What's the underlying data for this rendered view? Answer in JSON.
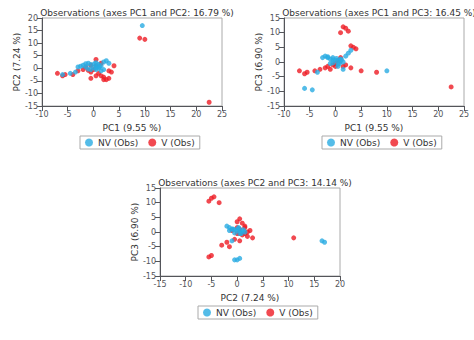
{
  "chart_data": [
    {
      "type": "scatter",
      "title": "Observations (axes PC1 and PC2: 16.79 %)",
      "xlabel": "PC1 (9.55 %)",
      "ylabel": "PC2 (7.24 %)",
      "xlim": [
        -10,
        25
      ],
      "ylim": [
        -15,
        20
      ],
      "xticks": [
        -10,
        -5,
        0,
        5,
        10,
        15,
        20,
        25
      ],
      "yticks": [
        -15,
        -10,
        -5,
        0,
        5,
        10,
        15,
        20
      ],
      "grid": false,
      "legend": "bottom",
      "series": [
        {
          "name": "NV (Obs)",
          "color": "#29ABE2",
          "values": [
            [
              -1.5,
              1.8
            ],
            [
              -2.0,
              1.2
            ],
            [
              -1.0,
              2.0
            ],
            [
              -0.5,
              1.5
            ],
            [
              0.2,
              1.8
            ],
            [
              0.5,
              2.2
            ],
            [
              1.0,
              1.5
            ],
            [
              0.8,
              0.8
            ],
            [
              1.5,
              1.0
            ],
            [
              2.0,
              2.5
            ],
            [
              2.5,
              3.0
            ],
            [
              3.0,
              2.0
            ],
            [
              -0.5,
              -0.5
            ],
            [
              0.0,
              0.3
            ],
            [
              1.0,
              0.0
            ],
            [
              9.5,
              17.0
            ],
            [
              -4.5,
              -2.0
            ],
            [
              -6.0,
              -2.5
            ],
            [
              -3.5,
              -1.5
            ],
            [
              0.5,
              -0.5
            ],
            [
              1.5,
              -1.0
            ],
            [
              2.0,
              -0.5
            ],
            [
              -1.5,
              0.5
            ],
            [
              -2.5,
              0.8
            ],
            [
              -3.0,
              0.5
            ],
            [
              -1.0,
              -0.3
            ],
            [
              0.5,
              0.2
            ],
            [
              1.2,
              0.5
            ]
          ]
        },
        {
          "name": "V (Obs)",
          "color": "#ED1C24",
          "values": [
            [
              -5.5,
              -2.5
            ],
            [
              -7.0,
              -2.0
            ],
            [
              -6.0,
              -3.0
            ],
            [
              -4.0,
              -2.5
            ],
            [
              -3.0,
              -1.0
            ],
            [
              -2.0,
              -0.5
            ],
            [
              -1.0,
              -0.8
            ],
            [
              0.0,
              -0.5
            ],
            [
              1.0,
              -2.0
            ],
            [
              2.0,
              -3.5
            ],
            [
              3.0,
              -4.0
            ],
            [
              2.5,
              -4.5
            ],
            [
              0.5,
              -3.0
            ],
            [
              -0.5,
              -1.5
            ],
            [
              9.0,
              12.0
            ],
            [
              10.0,
              11.5
            ],
            [
              22.5,
              -13.5
            ],
            [
              4.0,
              1.0
            ],
            [
              3.5,
              -1.5
            ],
            [
              1.5,
              2.0
            ],
            [
              0.5,
              3.5
            ],
            [
              -1.5,
              0.5
            ],
            [
              -0.5,
              -4.0
            ],
            [
              2.0,
              -4.5
            ],
            [
              1.5,
              -3.0
            ],
            [
              0.5,
              1.0
            ],
            [
              -0.5,
              1.2
            ],
            [
              3.0,
              -1.0
            ]
          ]
        }
      ]
    },
    {
      "type": "scatter",
      "title": "Observations (axes PC1 and PC3: 16.45 %)",
      "xlabel": "PC1 (9.55 %)",
      "ylabel": "PC3 (6.90 %)",
      "xlim": [
        -10,
        25
      ],
      "ylim": [
        -15,
        15
      ],
      "xticks": [
        -10,
        -5,
        0,
        5,
        10,
        15,
        20,
        25
      ],
      "yticks": [
        -15,
        -10,
        -5,
        0,
        5,
        10,
        15
      ],
      "grid": false,
      "legend": "bottom",
      "series": [
        {
          "name": "NV (Obs)",
          "color": "#29ABE2",
          "values": [
            [
              -1.5,
              1.5
            ],
            [
              -2.0,
              2.0
            ],
            [
              -1.0,
              1.0
            ],
            [
              -0.5,
              0.8
            ],
            [
              0.2,
              1.2
            ],
            [
              0.5,
              0.5
            ],
            [
              1.0,
              0.3
            ],
            [
              0.8,
              -0.5
            ],
            [
              1.5,
              0.0
            ],
            [
              2.0,
              2.0
            ],
            [
              2.5,
              3.0
            ],
            [
              3.0,
              4.0
            ],
            [
              -0.5,
              -0.3
            ],
            [
              0.0,
              0.5
            ],
            [
              1.0,
              1.0
            ],
            [
              10.0,
              -3.0
            ],
            [
              -4.5,
              -9.5
            ],
            [
              -6.0,
              -9.0
            ],
            [
              -3.5,
              -3.5
            ],
            [
              0.5,
              -1.5
            ],
            [
              1.5,
              -2.5
            ],
            [
              -1.5,
              1.8
            ],
            [
              -2.5,
              1.5
            ],
            [
              -1.0,
              -0.5
            ],
            [
              0.5,
              -0.8
            ],
            [
              1.2,
              0.8
            ],
            [
              -0.5,
              1.5
            ]
          ]
        },
        {
          "name": "V (Obs)",
          "color": "#ED1C24",
          "values": [
            [
              -5.5,
              -3.5
            ],
            [
              -7.0,
              -3.0
            ],
            [
              -6.0,
              -4.0
            ],
            [
              -4.0,
              -3.0
            ],
            [
              -3.0,
              -2.5
            ],
            [
              -2.0,
              -2.0
            ],
            [
              -1.0,
              -2.5
            ],
            [
              0.0,
              -1.5
            ],
            [
              1.5,
              12.0
            ],
            [
              2.0,
              11.5
            ],
            [
              2.5,
              10.5
            ],
            [
              1.0,
              10.0
            ],
            [
              3.0,
              5.5
            ],
            [
              3.5,
              5.0
            ],
            [
              4.0,
              4.5
            ],
            [
              5.0,
              -3.0
            ],
            [
              8.0,
              -3.5
            ],
            [
              22.5,
              -8.5
            ],
            [
              1.0,
              1.5
            ],
            [
              0.5,
              0.5
            ],
            [
              -0.5,
              -1.0
            ],
            [
              2.0,
              -1.0
            ],
            [
              3.0,
              -2.0
            ],
            [
              1.5,
              -1.5
            ],
            [
              0.0,
              -0.5
            ],
            [
              -1.5,
              -1.5
            ],
            [
              0.8,
              0.3
            ]
          ]
        }
      ]
    },
    {
      "type": "scatter",
      "title": "Observations (axes PC2 and PC3: 14.14 %)",
      "xlabel": "PC2 (7.24 %)",
      "ylabel": "PC3 (6.90 %)",
      "xlim": [
        -15,
        20
      ],
      "ylim": [
        -15,
        15
      ],
      "xticks": [
        -15,
        -10,
        -5,
        0,
        5,
        10,
        15,
        20
      ],
      "yticks": [
        -15,
        -10,
        -5,
        0,
        5,
        10,
        15
      ],
      "grid": false,
      "legend": "bottom",
      "series": [
        {
          "name": "NV (Obs)",
          "color": "#29ABE2",
          "values": [
            [
              -1.5,
              1.5
            ],
            [
              -2.0,
              2.0
            ],
            [
              -1.0,
              1.0
            ],
            [
              -0.5,
              0.8
            ],
            [
              0.2,
              1.2
            ],
            [
              0.5,
              0.5
            ],
            [
              1.0,
              0.3
            ],
            [
              0.8,
              -0.5
            ],
            [
              1.5,
              0.0
            ],
            [
              -0.5,
              -9.5
            ],
            [
              0.0,
              -9.5
            ],
            [
              0.5,
              -9.0
            ],
            [
              0.0,
              0.5
            ],
            [
              -1.0,
              -3.0
            ],
            [
              16.5,
              -3.0
            ],
            [
              17.0,
              -3.5
            ],
            [
              -0.5,
              -0.3
            ],
            [
              -1.5,
              0.5
            ],
            [
              0.5,
              -0.5
            ],
            [
              1.2,
              0.8
            ],
            [
              -0.8,
              1.0
            ],
            [
              0.3,
              1.5
            ]
          ]
        },
        {
          "name": "V (Obs)",
          "color": "#ED1C24",
          "values": [
            [
              -5.0,
              11.5
            ],
            [
              -5.5,
              10.5
            ],
            [
              -4.5,
              12.0
            ],
            [
              -3.5,
              10.0
            ],
            [
              -5.0,
              -8.0
            ],
            [
              -5.5,
              -8.5
            ],
            [
              -1.5,
              -5.0
            ],
            [
              -3.0,
              -4.5
            ],
            [
              0.5,
              4.5
            ],
            [
              0.0,
              3.5
            ],
            [
              1.0,
              3.0
            ],
            [
              1.5,
              2.0
            ],
            [
              0.5,
              -0.5
            ],
            [
              1.0,
              -1.0
            ],
            [
              2.0,
              -1.5
            ],
            [
              3.0,
              -2.0
            ],
            [
              -0.5,
              -2.5
            ],
            [
              0.0,
              1.5
            ],
            [
              1.5,
              1.5
            ],
            [
              0.5,
              -3.0
            ],
            [
              11.0,
              -2.0
            ],
            [
              0.0,
              -0.5
            ],
            [
              -1.0,
              0.5
            ],
            [
              2.5,
              0.5
            ],
            [
              -2.0,
              -3.5
            ],
            [
              1.5,
              -0.5
            ],
            [
              0.5,
              1.0
            ],
            [
              2.0,
              0.0
            ]
          ]
        }
      ]
    }
  ]
}
